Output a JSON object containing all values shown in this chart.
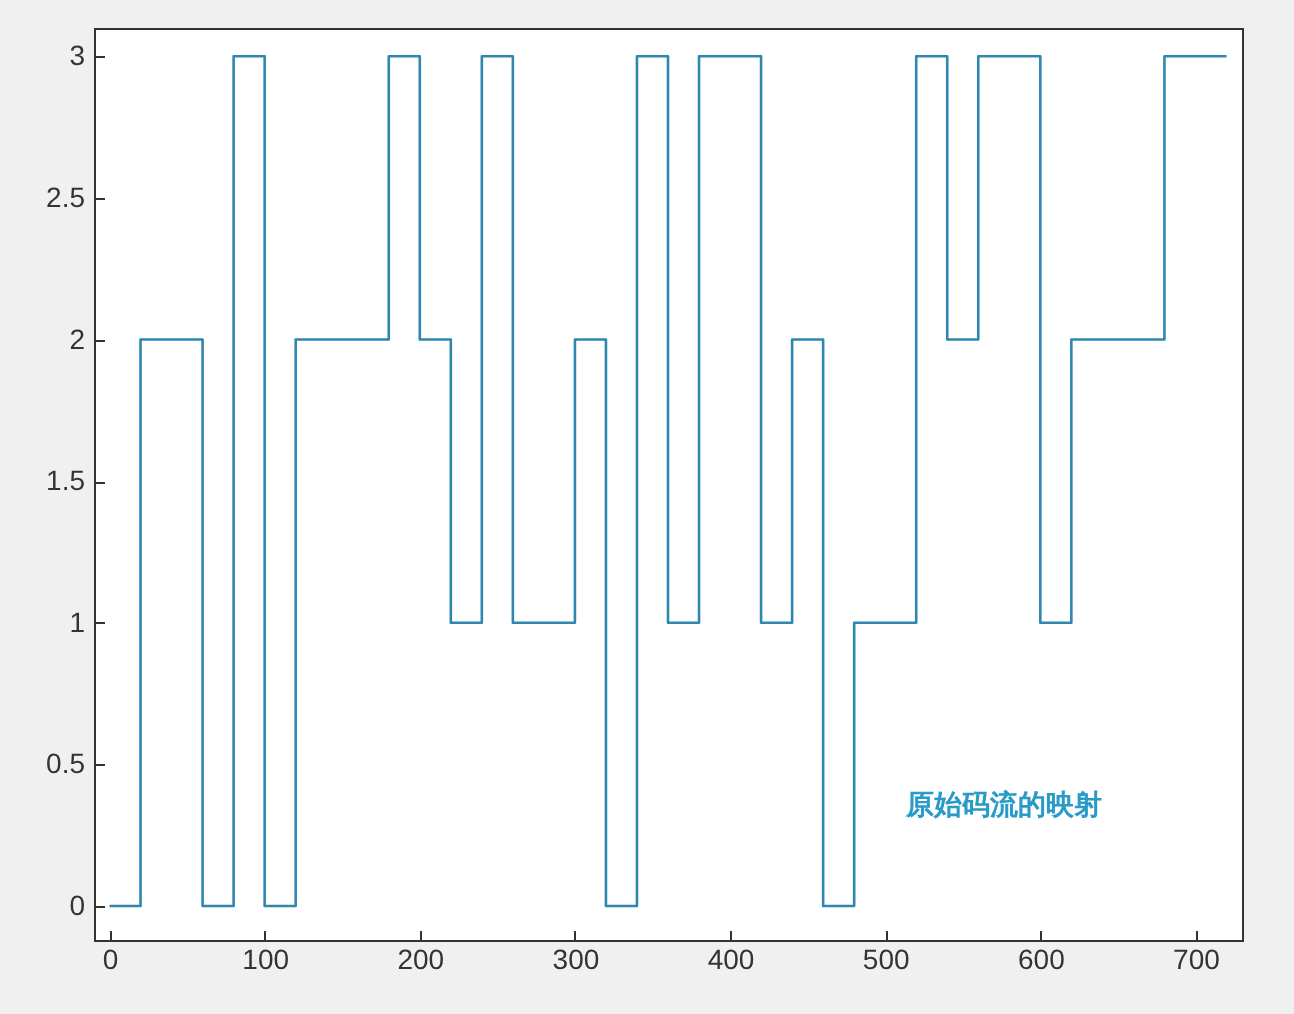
{
  "chart_data": {
    "type": "step",
    "x": [
      0,
      20,
      60,
      80,
      100,
      120,
      180,
      200,
      220,
      240,
      260,
      300,
      320,
      340,
      360,
      380,
      420,
      440,
      460,
      480,
      520,
      540,
      560,
      600,
      620,
      680,
      720
    ],
    "series": [
      {
        "color": "#2f87b0",
        "values": [
          0,
          2,
          0,
          3,
          0,
          2,
          3,
          2,
          1,
          3,
          1,
          2,
          0,
          3,
          1,
          3,
          1,
          2,
          0,
          1,
          3,
          2,
          3,
          1,
          2,
          3,
          3
        ]
      }
    ],
    "xlim": [
      -10,
      730
    ],
    "xticks": [
      0,
      100,
      200,
      300,
      400,
      500,
      600,
      700
    ],
    "ylim": [
      -0.12,
      3.1
    ],
    "yticks": [
      0,
      0.5,
      1,
      1.5,
      2,
      2.5,
      3
    ],
    "annotations": [
      "原始码流的映射"
    ],
    "grid": false,
    "marker": "none",
    "line_style": "solid"
  }
}
